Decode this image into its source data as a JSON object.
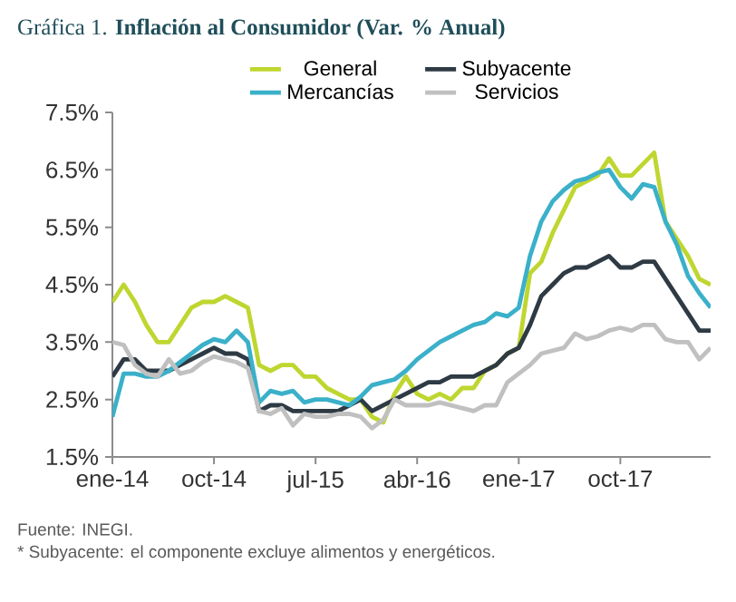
{
  "chart_data": {
    "type": "line",
    "title": "Gráfica 1. **Inflación al Consumidor (Var. % Anual)**",
    "categories": [
      "ene-14",
      null,
      null,
      null,
      null,
      null,
      null,
      null,
      null,
      "oct-14",
      null,
      null,
      null,
      null,
      null,
      null,
      null,
      null,
      "jul-15",
      null,
      null,
      null,
      null,
      null,
      null,
      null,
      null,
      "abr-16",
      null,
      null,
      null,
      null,
      null,
      null,
      null,
      null,
      "ene-17",
      null,
      null,
      null,
      null,
      null,
      null,
      null,
      null,
      "oct-17",
      null,
      null,
      null,
      null,
      null,
      null,
      null,
      null
    ],
    "series": [
      {
        "name": "General",
        "color": "#bfd630",
        "values": [
          4.2,
          4.5,
          4.2,
          3.8,
          3.5,
          3.5,
          3.8,
          4.1,
          4.2,
          4.2,
          4.3,
          4.2,
          4.1,
          3.1,
          3.0,
          3.1,
          3.1,
          2.9,
          2.9,
          2.7,
          2.6,
          2.5,
          2.5,
          2.2,
          2.1,
          2.6,
          2.9,
          2.6,
          2.5,
          2.6,
          2.5,
          2.7,
          2.7,
          3.0,
          3.1,
          3.3,
          3.4,
          4.7,
          4.9,
          5.4,
          5.8,
          6.2,
          6.3,
          6.4,
          6.7,
          6.4,
          6.4,
          6.6,
          6.8,
          5.6,
          5.3,
          5.0,
          4.6,
          4.5
        ]
      },
      {
        "name": "Subyacente",
        "color": "#2e3a44",
        "values": [
          2.9,
          3.2,
          3.2,
          3.0,
          3.0,
          3.0,
          3.1,
          3.2,
          3.3,
          3.4,
          3.3,
          3.3,
          3.2,
          2.3,
          2.4,
          2.4,
          2.3,
          2.3,
          2.3,
          2.3,
          2.3,
          2.4,
          2.5,
          2.3,
          2.4,
          2.5,
          2.6,
          2.7,
          2.8,
          2.8,
          2.9,
          2.9,
          2.9,
          3.0,
          3.1,
          3.3,
          3.4,
          3.8,
          4.3,
          4.5,
          4.7,
          4.8,
          4.8,
          4.9,
          5.0,
          4.8,
          4.8,
          4.9,
          4.9,
          4.6,
          4.3,
          4.0,
          3.7,
          3.7
        ]
      },
      {
        "name": "Mercancías",
        "color": "#3bb0c9",
        "values": [
          2.2,
          2.95,
          2.95,
          2.9,
          2.9,
          3.0,
          3.15,
          3.3,
          3.45,
          3.55,
          3.5,
          3.7,
          3.5,
          2.45,
          2.65,
          2.6,
          2.65,
          2.45,
          2.5,
          2.5,
          2.45,
          2.4,
          2.55,
          2.75,
          2.8,
          2.85,
          3.0,
          3.2,
          3.35,
          3.5,
          3.6,
          3.7,
          3.8,
          3.85,
          4.0,
          3.95,
          4.1,
          5.0,
          5.6,
          5.95,
          6.15,
          6.3,
          6.35,
          6.45,
          6.5,
          6.2,
          6.0,
          6.25,
          6.2,
          5.6,
          5.2,
          4.65,
          4.35,
          4.1
        ]
      },
      {
        "name": "Servicios",
        "color": "#c0c0c0",
        "values": [
          3.5,
          3.45,
          3.1,
          2.95,
          2.9,
          3.2,
          2.95,
          3.0,
          3.15,
          3.25,
          3.2,
          3.15,
          3.05,
          2.3,
          2.25,
          2.35,
          2.05,
          2.25,
          2.2,
          2.2,
          2.25,
          2.25,
          2.2,
          2.0,
          2.15,
          2.5,
          2.4,
          2.4,
          2.4,
          2.45,
          2.4,
          2.35,
          2.3,
          2.4,
          2.4,
          2.8,
          2.95,
          3.1,
          3.3,
          3.35,
          3.4,
          3.65,
          3.55,
          3.6,
          3.7,
          3.75,
          3.7,
          3.8,
          3.8,
          3.55,
          3.5,
          3.5,
          3.2,
          3.4
        ]
      }
    ],
    "ylim": [
      1.5,
      7.5
    ],
    "yticks": [
      {
        "value": 1.5,
        "label": "1.5%"
      },
      {
        "value": 2.5,
        "label": "2.5%"
      },
      {
        "value": 3.5,
        "label": "3.5%"
      },
      {
        "value": 4.5,
        "label": "4.5%"
      },
      {
        "value": 5.5,
        "label": "5.5%"
      },
      {
        "value": 6.5,
        "label": "6.5%"
      },
      {
        "value": 7.5,
        "label": "7.5%"
      }
    ],
    "legend": "top",
    "marker": "none",
    "line_style": "solid",
    "annotations": [
      "Fuente: INEGI.",
      "* Subyacente: el componente excluye alimentos y energéticos."
    ]
  }
}
